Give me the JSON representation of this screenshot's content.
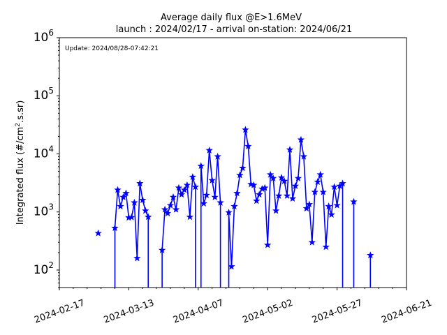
{
  "chart_data": {
    "type": "line",
    "title": "Average daily flux @E>1.6MeV",
    "subtitle": "launch : 2024/02/17 - arrival on-station: 2024/06/21",
    "annotation": "Update: 2024/08/28-07:42:21",
    "xlabel": "",
    "ylabel": "Integrated flux (#/cm².s.sr)",
    "ylabel_parts": {
      "before": "Integrated flux (#/cm",
      "sup": "2",
      "after": ".s.sr)"
    },
    "yscale": "log",
    "ylim": [
      50,
      1000000
    ],
    "xlim": [
      "2024-02-17",
      "2024-06-21"
    ],
    "x_ticks": [
      "2024-02-17",
      "2024-03-13",
      "2024-04-07",
      "2024-05-02",
      "2024-05-27",
      "2024-06-21"
    ],
    "y_ticks": [
      {
        "value": 100,
        "base": "10",
        "exp": "2"
      },
      {
        "value": 1000,
        "base": "10",
        "exp": "3"
      },
      {
        "value": 10000,
        "base": "10",
        "exp": "4"
      },
      {
        "value": 100000,
        "base": "10",
        "exp": "5"
      },
      {
        "value": 1000000,
        "base": "10",
        "exp": "6"
      }
    ],
    "grid": false,
    "legend": "none",
    "series": [
      {
        "color": "#0000ff",
        "marker": "star",
        "points": [
          [
            "2024-03-02",
            430
          ],
          [
            "2024-03-08",
            530
          ],
          [
            "2024-03-09",
            2400
          ],
          [
            "2024-03-10",
            1250
          ],
          [
            "2024-03-11",
            1800
          ],
          [
            "2024-03-12",
            2100
          ],
          [
            "2024-03-13",
            800
          ],
          [
            "2024-03-14",
            810
          ],
          [
            "2024-03-15",
            1450
          ],
          [
            "2024-03-16",
            160
          ],
          [
            "2024-03-17",
            3100
          ],
          [
            "2024-03-18",
            1600
          ],
          [
            "2024-03-19",
            1050
          ],
          [
            "2024-03-20",
            820
          ],
          [
            "2024-03-25",
            220
          ],
          [
            "2024-03-26",
            1100
          ],
          [
            "2024-03-27",
            950
          ],
          [
            "2024-03-28",
            1300
          ],
          [
            "2024-03-29",
            1800
          ],
          [
            "2024-03-30",
            1100
          ],
          [
            "2024-03-31",
            2600
          ],
          [
            "2024-04-01",
            2000
          ],
          [
            "2024-04-02",
            2400
          ],
          [
            "2024-04-03",
            2900
          ],
          [
            "2024-04-04",
            820
          ],
          [
            "2024-04-05",
            4000
          ],
          [
            "2024-04-06",
            2700
          ],
          [
            "2024-04-08",
            6200
          ],
          [
            "2024-04-09",
            1400
          ],
          [
            "2024-04-10",
            1950
          ],
          [
            "2024-04-11",
            11500
          ],
          [
            "2024-04-12",
            3500
          ],
          [
            "2024-04-13",
            1800
          ],
          [
            "2024-04-14",
            9000
          ],
          [
            "2024-04-15",
            1450
          ],
          [
            "2024-04-18",
            980
          ],
          [
            "2024-04-19",
            115
          ],
          [
            "2024-04-20",
            1250
          ],
          [
            "2024-04-21",
            2100
          ],
          [
            "2024-04-22",
            4300
          ],
          [
            "2024-04-23",
            5700
          ],
          [
            "2024-04-24",
            26000
          ],
          [
            "2024-04-25",
            13500
          ],
          [
            "2024-04-26",
            3000
          ],
          [
            "2024-04-27",
            2900
          ],
          [
            "2024-04-28",
            1550
          ],
          [
            "2024-04-29",
            2000
          ],
          [
            "2024-04-30",
            2500
          ],
          [
            "2024-05-01",
            2600
          ],
          [
            "2024-05-02",
            270
          ],
          [
            "2024-05-03",
            4400
          ],
          [
            "2024-05-04",
            3800
          ],
          [
            "2024-05-05",
            1050
          ],
          [
            "2024-05-06",
            1900
          ],
          [
            "2024-05-07",
            3900
          ],
          [
            "2024-05-08",
            3400
          ],
          [
            "2024-05-09",
            1900
          ],
          [
            "2024-05-10",
            11800
          ],
          [
            "2024-05-11",
            1700
          ],
          [
            "2024-05-12",
            2800
          ],
          [
            "2024-05-13",
            3800
          ],
          [
            "2024-05-14",
            17500
          ],
          [
            "2024-05-15",
            9000
          ],
          [
            "2024-05-16",
            1150
          ],
          [
            "2024-05-17",
            1350
          ],
          [
            "2024-05-18",
            300
          ],
          [
            "2024-05-19",
            2200
          ],
          [
            "2024-05-20",
            3300
          ],
          [
            "2024-05-21",
            4400
          ],
          [
            "2024-05-22",
            2200
          ],
          [
            "2024-05-23",
            250
          ],
          [
            "2024-05-24",
            1250
          ],
          [
            "2024-05-25",
            900
          ],
          [
            "2024-05-26",
            2700
          ],
          [
            "2024-05-27",
            1300
          ],
          [
            "2024-05-28",
            2800
          ],
          [
            "2024-05-29",
            3100
          ],
          [
            "2024-06-02",
            1500
          ],
          [
            "2024-06-08",
            180
          ]
        ]
      }
    ]
  }
}
